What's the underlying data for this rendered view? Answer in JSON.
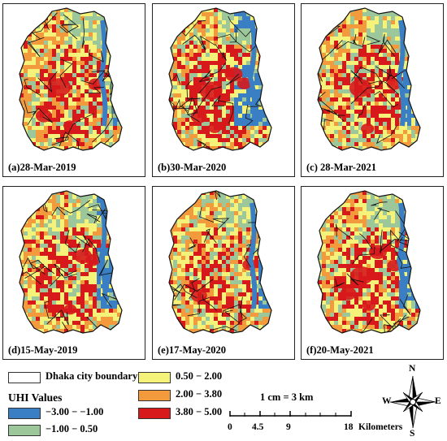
{
  "panels": [
    {
      "label": "(a)28-Mar-2019",
      "variant": "a"
    },
    {
      "label": "(b)30-Mar-2020",
      "variant": "b"
    },
    {
      "label": "(c) 28-Mar-2021",
      "variant": "c"
    },
    {
      "label": "(d)15-May-2019",
      "variant": "d"
    },
    {
      "label": "(e)17-May-2020",
      "variant": "e"
    },
    {
      "label": "(f)20-May-2021",
      "variant": "f"
    }
  ],
  "legend": {
    "boundary_label": "Dhaka city boundary",
    "title": "UHI Values",
    "classes": [
      {
        "label": "−3.00 − −1.00",
        "color": "#3a7fc4"
      },
      {
        "label": "−1.00 − 0.50",
        "color": "#9cc79b"
      },
      {
        "label": "0.50 − 2.00",
        "color": "#f5f27a"
      },
      {
        "label": "2.00 − 3.80",
        "color": "#f39a3d"
      },
      {
        "label": "3.80 − 5.00",
        "color": "#d7191c"
      }
    ]
  },
  "scale": {
    "ratio": "1 cm = 3 km",
    "ticks": [
      "0",
      "4.5",
      "9",
      "18"
    ],
    "unit": "Kilometers"
  },
  "north_arrow": {
    "n": "N",
    "s": "S",
    "e": "E",
    "w": "W",
    "icon": "compass-rose-icon"
  }
}
